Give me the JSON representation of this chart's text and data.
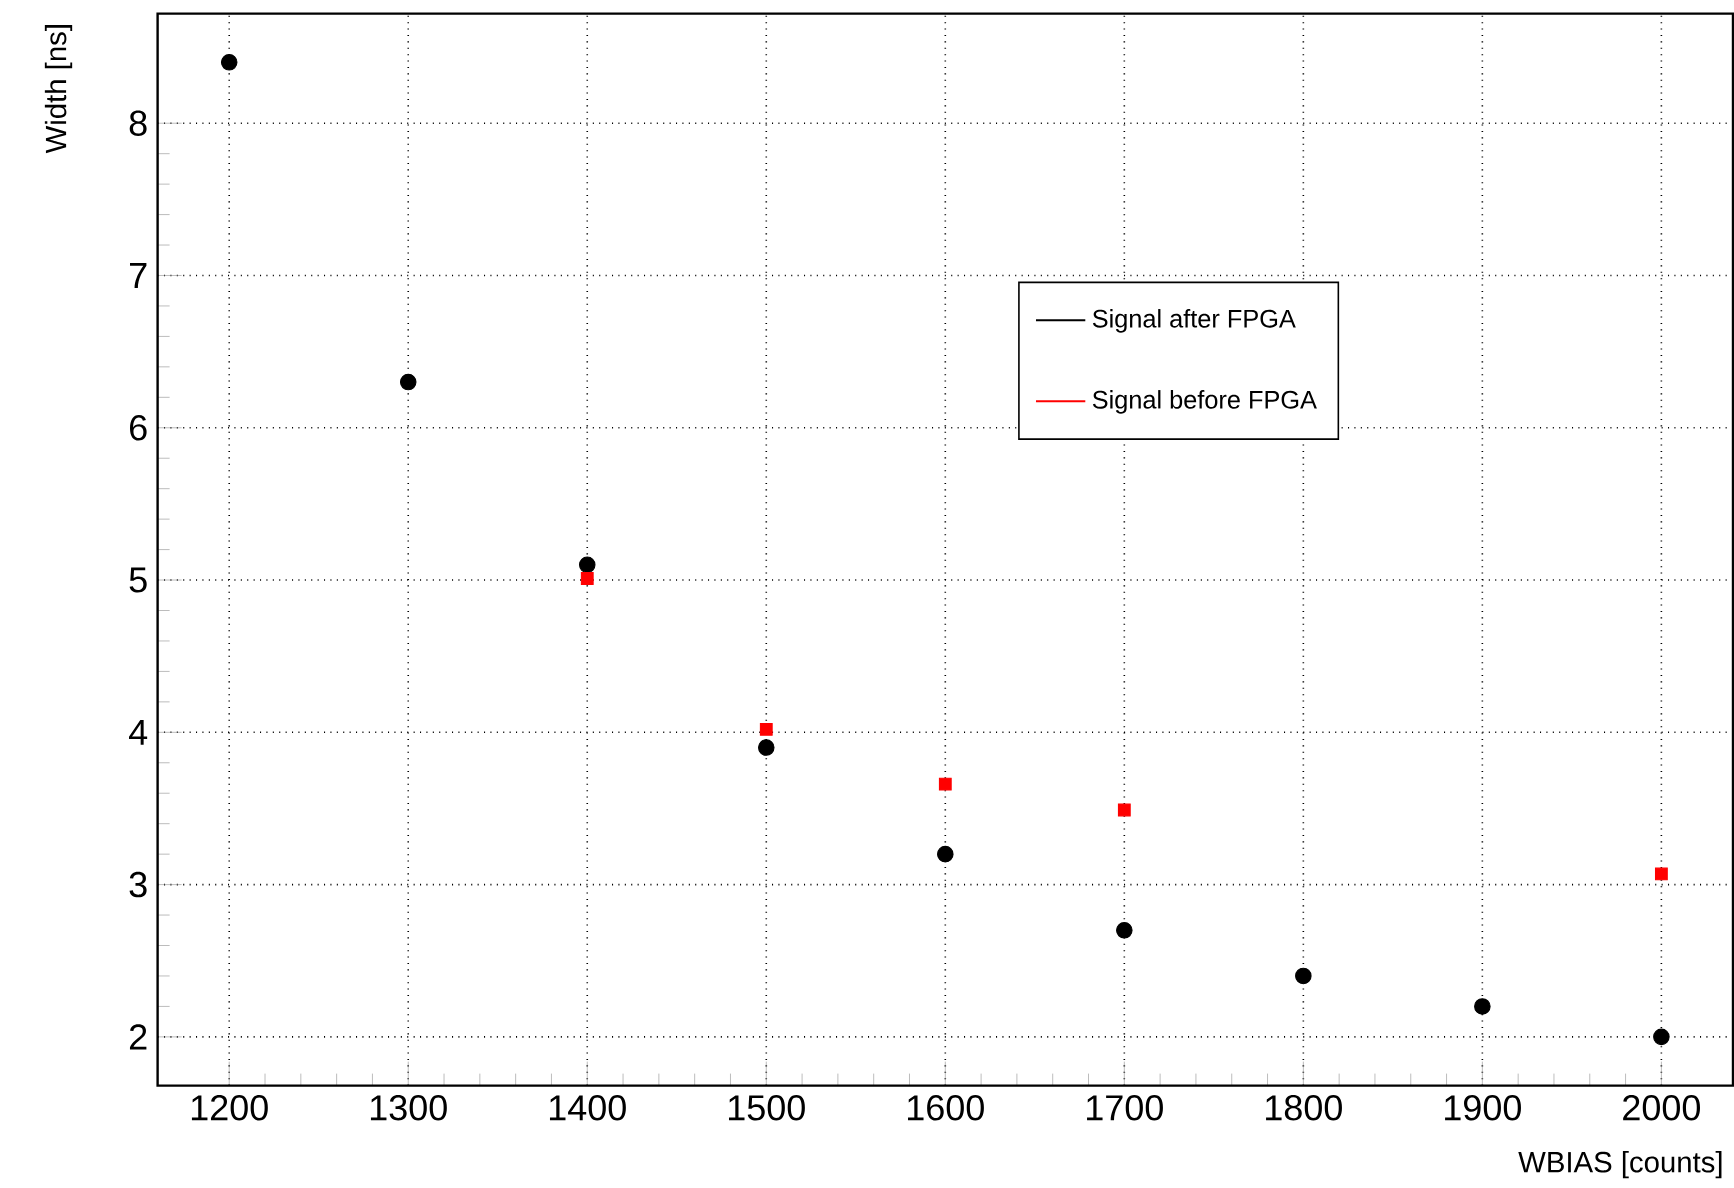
{
  "chart_data": {
    "type": "scatter",
    "xlabel": "WBIAS [counts]",
    "ylabel": "Width [ns]",
    "xlim": [
      1160,
      2040
    ],
    "ylim": [
      1.68,
      8.72
    ],
    "xticks": [
      1200,
      1300,
      1400,
      1500,
      1600,
      1700,
      1800,
      1900,
      2000
    ],
    "yticks": [
      2,
      3,
      4,
      5,
      6,
      7,
      8
    ],
    "grid": true,
    "legend": "top right",
    "series": [
      {
        "name": "Signal after FPGA",
        "color": "#000000",
        "marker": "circle",
        "x": [
          1200,
          1300,
          1400,
          1500,
          1600,
          1700,
          1800,
          1900,
          2000
        ],
        "values": [
          8.4,
          6.3,
          5.1,
          3.9,
          3.2,
          2.7,
          2.4,
          2.2,
          2.0
        ]
      },
      {
        "name": "Signal before FPGA",
        "color": "#ff0000",
        "marker": "square",
        "x": [
          1400,
          1500,
          1600,
          1700,
          2000
        ],
        "values": [
          5.01,
          4.02,
          3.66,
          3.49,
          3.07
        ]
      }
    ]
  }
}
